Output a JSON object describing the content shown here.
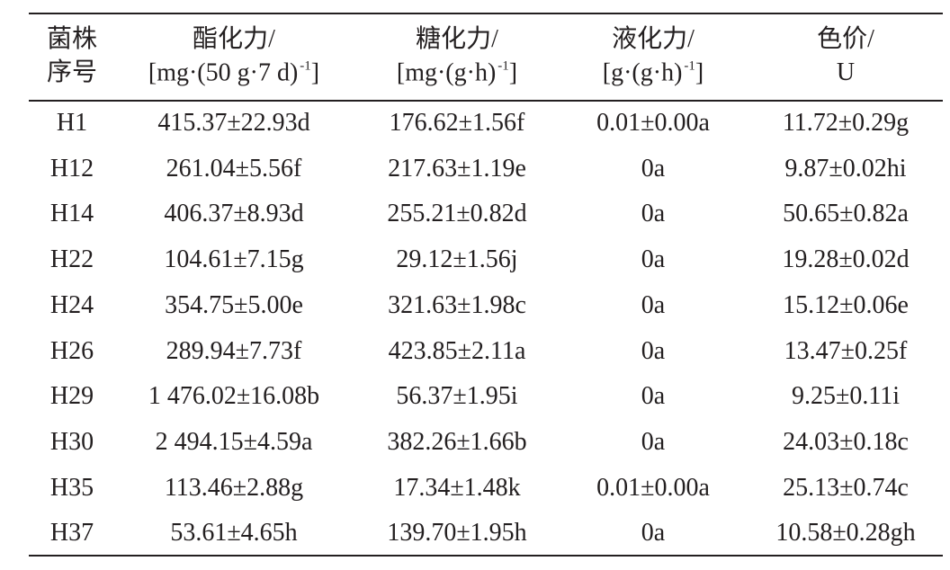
{
  "table": {
    "header": [
      {
        "top": "菌株",
        "bottom": "序号"
      },
      {
        "top": "酯化力/",
        "bottom": "[mg·(50 g·7 d)",
        "sup": "-1",
        "end": "]"
      },
      {
        "top": "糖化力/",
        "bottom": "[mg·(g·h)",
        "sup": "-1",
        "end": "]"
      },
      {
        "top": "液化力/",
        "bottom": "[g·(g·h)",
        "sup": "-1",
        "end": "]"
      },
      {
        "top": "色价/",
        "bottom": "U"
      }
    ],
    "rows": [
      [
        "H1",
        "415.37±22.93d",
        "176.62±1.56f",
        "0.01±0.00a",
        "11.72±0.29g"
      ],
      [
        "H12",
        "261.04±5.56f",
        "217.63±1.19e",
        "0a",
        "9.87±0.02hi"
      ],
      [
        "H14",
        "406.37±8.93d",
        "255.21±0.82d",
        "0a",
        "50.65±0.82a"
      ],
      [
        "H22",
        "104.61±7.15g",
        "29.12±1.56j",
        "0a",
        "19.28±0.02d"
      ],
      [
        "H24",
        "354.75±5.00e",
        "321.63±1.98c",
        "0a",
        "15.12±0.06e"
      ],
      [
        "H26",
        "289.94±7.73f",
        "423.85±2.11a",
        "0a",
        "13.47±0.25f"
      ],
      [
        "H29",
        "1 476.02±16.08b",
        "56.37±1.95i",
        "0a",
        "9.25±0.11i"
      ],
      [
        "H30",
        "2 494.15±4.59a",
        "382.26±1.66b",
        "0a",
        "24.03±0.18c"
      ],
      [
        "H35",
        "113.46±2.88g",
        "17.34±1.48k",
        "0.01±0.00a",
        "25.13±0.74c"
      ],
      [
        "H37",
        "53.61±4.65h",
        "139.70±1.95h",
        "0a",
        "10.58±0.28gh"
      ]
    ]
  }
}
